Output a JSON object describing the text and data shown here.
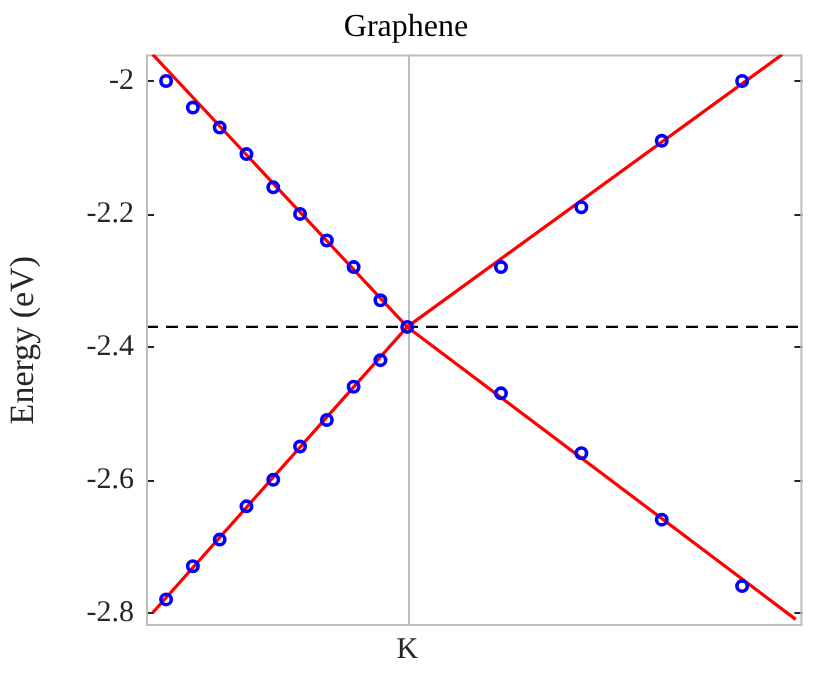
{
  "chart_data": {
    "type": "scatter",
    "title": "Graphene",
    "ylabel": "Energy (eV)",
    "ylim": [
      -2.82,
      -1.96
    ],
    "yticks": [
      -2.8,
      -2.6,
      -2.4,
      -2.2,
      -2
    ],
    "marker": "circle",
    "categories": [
      null,
      null,
      null,
      null,
      null,
      null,
      null,
      null,
      null,
      null,
      null,
      null,
      null,
      null,
      null,
      null,
      null,
      null,
      null,
      "K",
      null,
      null,
      null,
      null,
      null,
      null,
      null,
      null,
      null,
      null,
      null,
      null,
      null,
      null,
      null,
      null,
      null,
      null,
      null,
      null,
      null,
      null,
      null,
      null,
      null,
      null,
      null,
      null,
      null
    ],
    "ref_lines": [
      {
        "axis": "x",
        "value": "K",
        "color": "#bdbdbd",
        "line_style": "solid"
      },
      {
        "axis": "y",
        "value": -2.37,
        "color": "#000000",
        "line_style": "dashed"
      }
    ],
    "series": [
      {
        "type": "line",
        "color": "#ff0000",
        "marker": "none",
        "values": [
          -1.96,
          null,
          null,
          null,
          null,
          null,
          null,
          null,
          null,
          null,
          null,
          null,
          null,
          null,
          null,
          null,
          null,
          null,
          null,
          -2.37,
          null,
          null,
          null,
          null,
          null,
          null,
          null,
          null,
          null,
          null,
          null,
          null,
          null,
          null,
          null,
          null,
          null,
          null,
          null,
          null,
          null,
          null,
          null,
          null,
          null,
          null,
          null,
          null,
          -2.81
        ]
      },
      {
        "type": "line",
        "color": "#ff0000",
        "marker": "none",
        "values": [
          -2.8,
          null,
          null,
          null,
          null,
          null,
          null,
          null,
          null,
          null,
          null,
          null,
          null,
          null,
          null,
          null,
          null,
          null,
          null,
          -2.37,
          null,
          null,
          null,
          null,
          null,
          null,
          null,
          null,
          null,
          null,
          null,
          null,
          null,
          null,
          null,
          null,
          null,
          null,
          null,
          null,
          null,
          null,
          null,
          null,
          null,
          null,
          null,
          -1.96,
          null
        ]
      },
      {
        "color": "#0000ff",
        "values": [
          null,
          -2.0,
          null,
          -2.04,
          null,
          -2.07,
          null,
          -2.11,
          null,
          -2.16,
          null,
          -2.2,
          null,
          -2.24,
          null,
          -2.28,
          null,
          -2.33,
          null,
          -2.37,
          null,
          null,
          null,
          null,
          null,
          null,
          null,
          null,
          null,
          null,
          null,
          null,
          null,
          null,
          null,
          null,
          null,
          null,
          null,
          null,
          null,
          null,
          null,
          null,
          null,
          null,
          null,
          null,
          null
        ]
      },
      {
        "color": "#0000ff",
        "values": [
          null,
          -2.78,
          null,
          -2.73,
          null,
          -2.69,
          null,
          -2.64,
          null,
          -2.6,
          null,
          -2.55,
          null,
          -2.51,
          null,
          -2.46,
          null,
          -2.42,
          null,
          null,
          null,
          null,
          null,
          null,
          null,
          null,
          null,
          null,
          null,
          null,
          null,
          null,
          null,
          null,
          null,
          null,
          null,
          null,
          null,
          null,
          null,
          null,
          null,
          null,
          null,
          null,
          null,
          null,
          null
        ]
      },
      {
        "color": "#0000ff",
        "values": [
          null,
          null,
          null,
          null,
          null,
          null,
          null,
          null,
          null,
          null,
          null,
          null,
          null,
          null,
          null,
          null,
          null,
          null,
          null,
          null,
          null,
          null,
          null,
          null,
          null,
          null,
          -2.28,
          null,
          null,
          null,
          null,
          null,
          -2.19,
          null,
          null,
          null,
          null,
          null,
          -2.09,
          null,
          null,
          null,
          null,
          null,
          -2.0,
          null,
          null,
          null,
          null
        ]
      },
      {
        "color": "#0000ff",
        "values": [
          null,
          null,
          null,
          null,
          null,
          null,
          null,
          null,
          null,
          null,
          null,
          null,
          null,
          null,
          null,
          null,
          null,
          null,
          null,
          null,
          null,
          null,
          null,
          null,
          null,
          null,
          -2.47,
          null,
          null,
          null,
          null,
          null,
          -2.56,
          null,
          null,
          null,
          null,
          null,
          -2.66,
          null,
          null,
          null,
          null,
          null,
          -2.76,
          null,
          null,
          null,
          null
        ]
      }
    ]
  }
}
